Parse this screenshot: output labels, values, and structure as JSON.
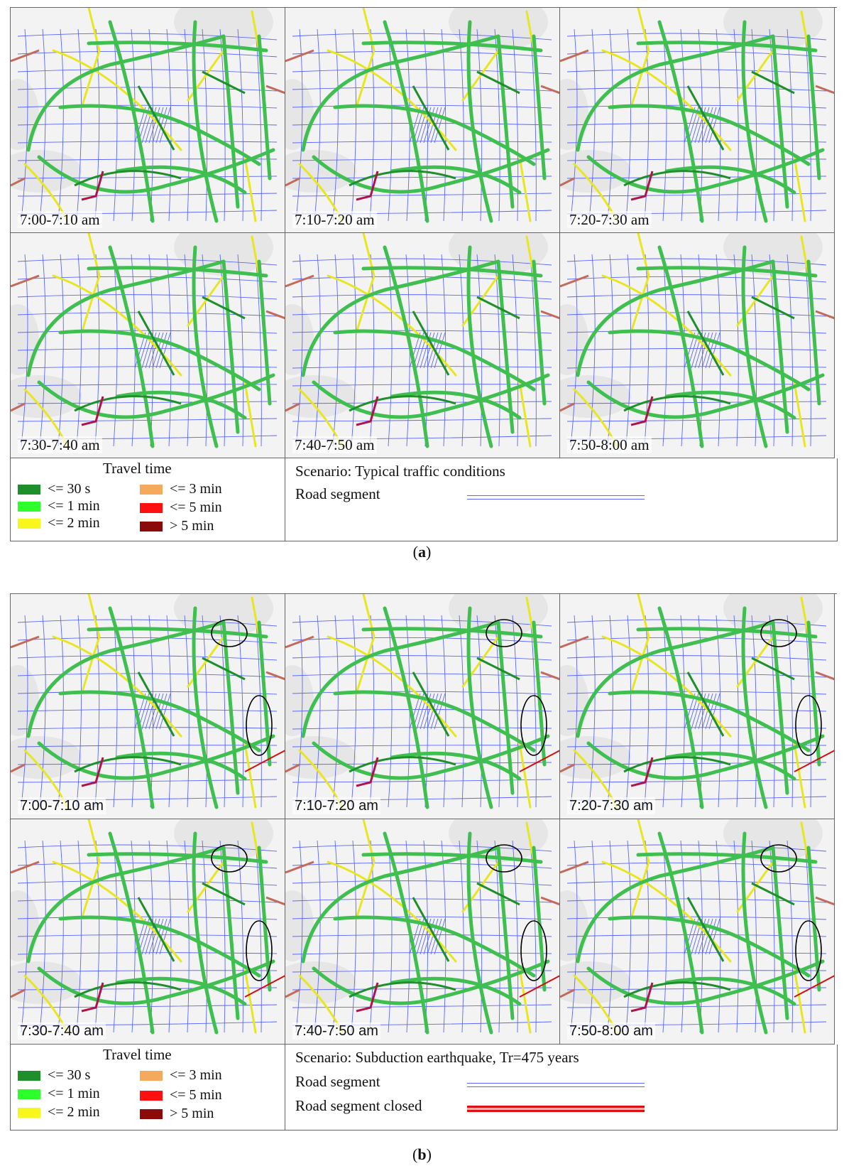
{
  "figure_a": {
    "caption_label": "a",
    "panels": [
      "7:00-7:10 am",
      "7:10-7:20 am",
      "7:20-7:30 am",
      "7:30-7:40 am",
      "7:40-7:50 am",
      "7:50-8:00 am"
    ],
    "legend": {
      "title": "Travel time",
      "items": [
        {
          "label": "<= 30 s",
          "color": "#1f8f2b"
        },
        {
          "label": "<= 1 min",
          "color": "#2cff2c"
        },
        {
          "label": "<= 2 min",
          "color": "#f7f71d"
        },
        {
          "label": "<= 3 min",
          "color": "#f5a95d"
        },
        {
          "label": "<= 5 min",
          "color": "#ff1010"
        },
        {
          "label": "> 5 min",
          "color": "#8b0a0a"
        }
      ]
    },
    "scenario": "Scenario: Typical traffic conditions",
    "road_segment": "Road segment"
  },
  "figure_b": {
    "caption_label": "b",
    "panels": [
      "7:00-7:10 am",
      "7:10-7:20 am",
      "7:20-7:30 am",
      "7:30-7:40 am",
      "7:40-7:50 am",
      "7:50-8:00 am"
    ],
    "legend": {
      "title": "Travel time",
      "items": [
        {
          "label": "<= 30 s",
          "color": "#1f8f2b"
        },
        {
          "label": "<= 1 min",
          "color": "#2cff2c"
        },
        {
          "label": "<= 2 min",
          "color": "#f7f71d"
        },
        {
          "label": "<= 3 min",
          "color": "#f5a95d"
        },
        {
          "label": "<= 5 min",
          "color": "#ff1010"
        },
        {
          "label": "> 5 min",
          "color": "#8b0a0a"
        }
      ]
    },
    "scenario": "Scenario: Subduction earthquake, Tr=475 years",
    "road_segment": "Road segment",
    "road_segment_closed": "Road segment closed"
  },
  "colors": {
    "road_network": "#5a66ff",
    "major_road_green": "#3fbf4f",
    "closed_road": "#d11111",
    "highlight_circle": "#000000"
  }
}
